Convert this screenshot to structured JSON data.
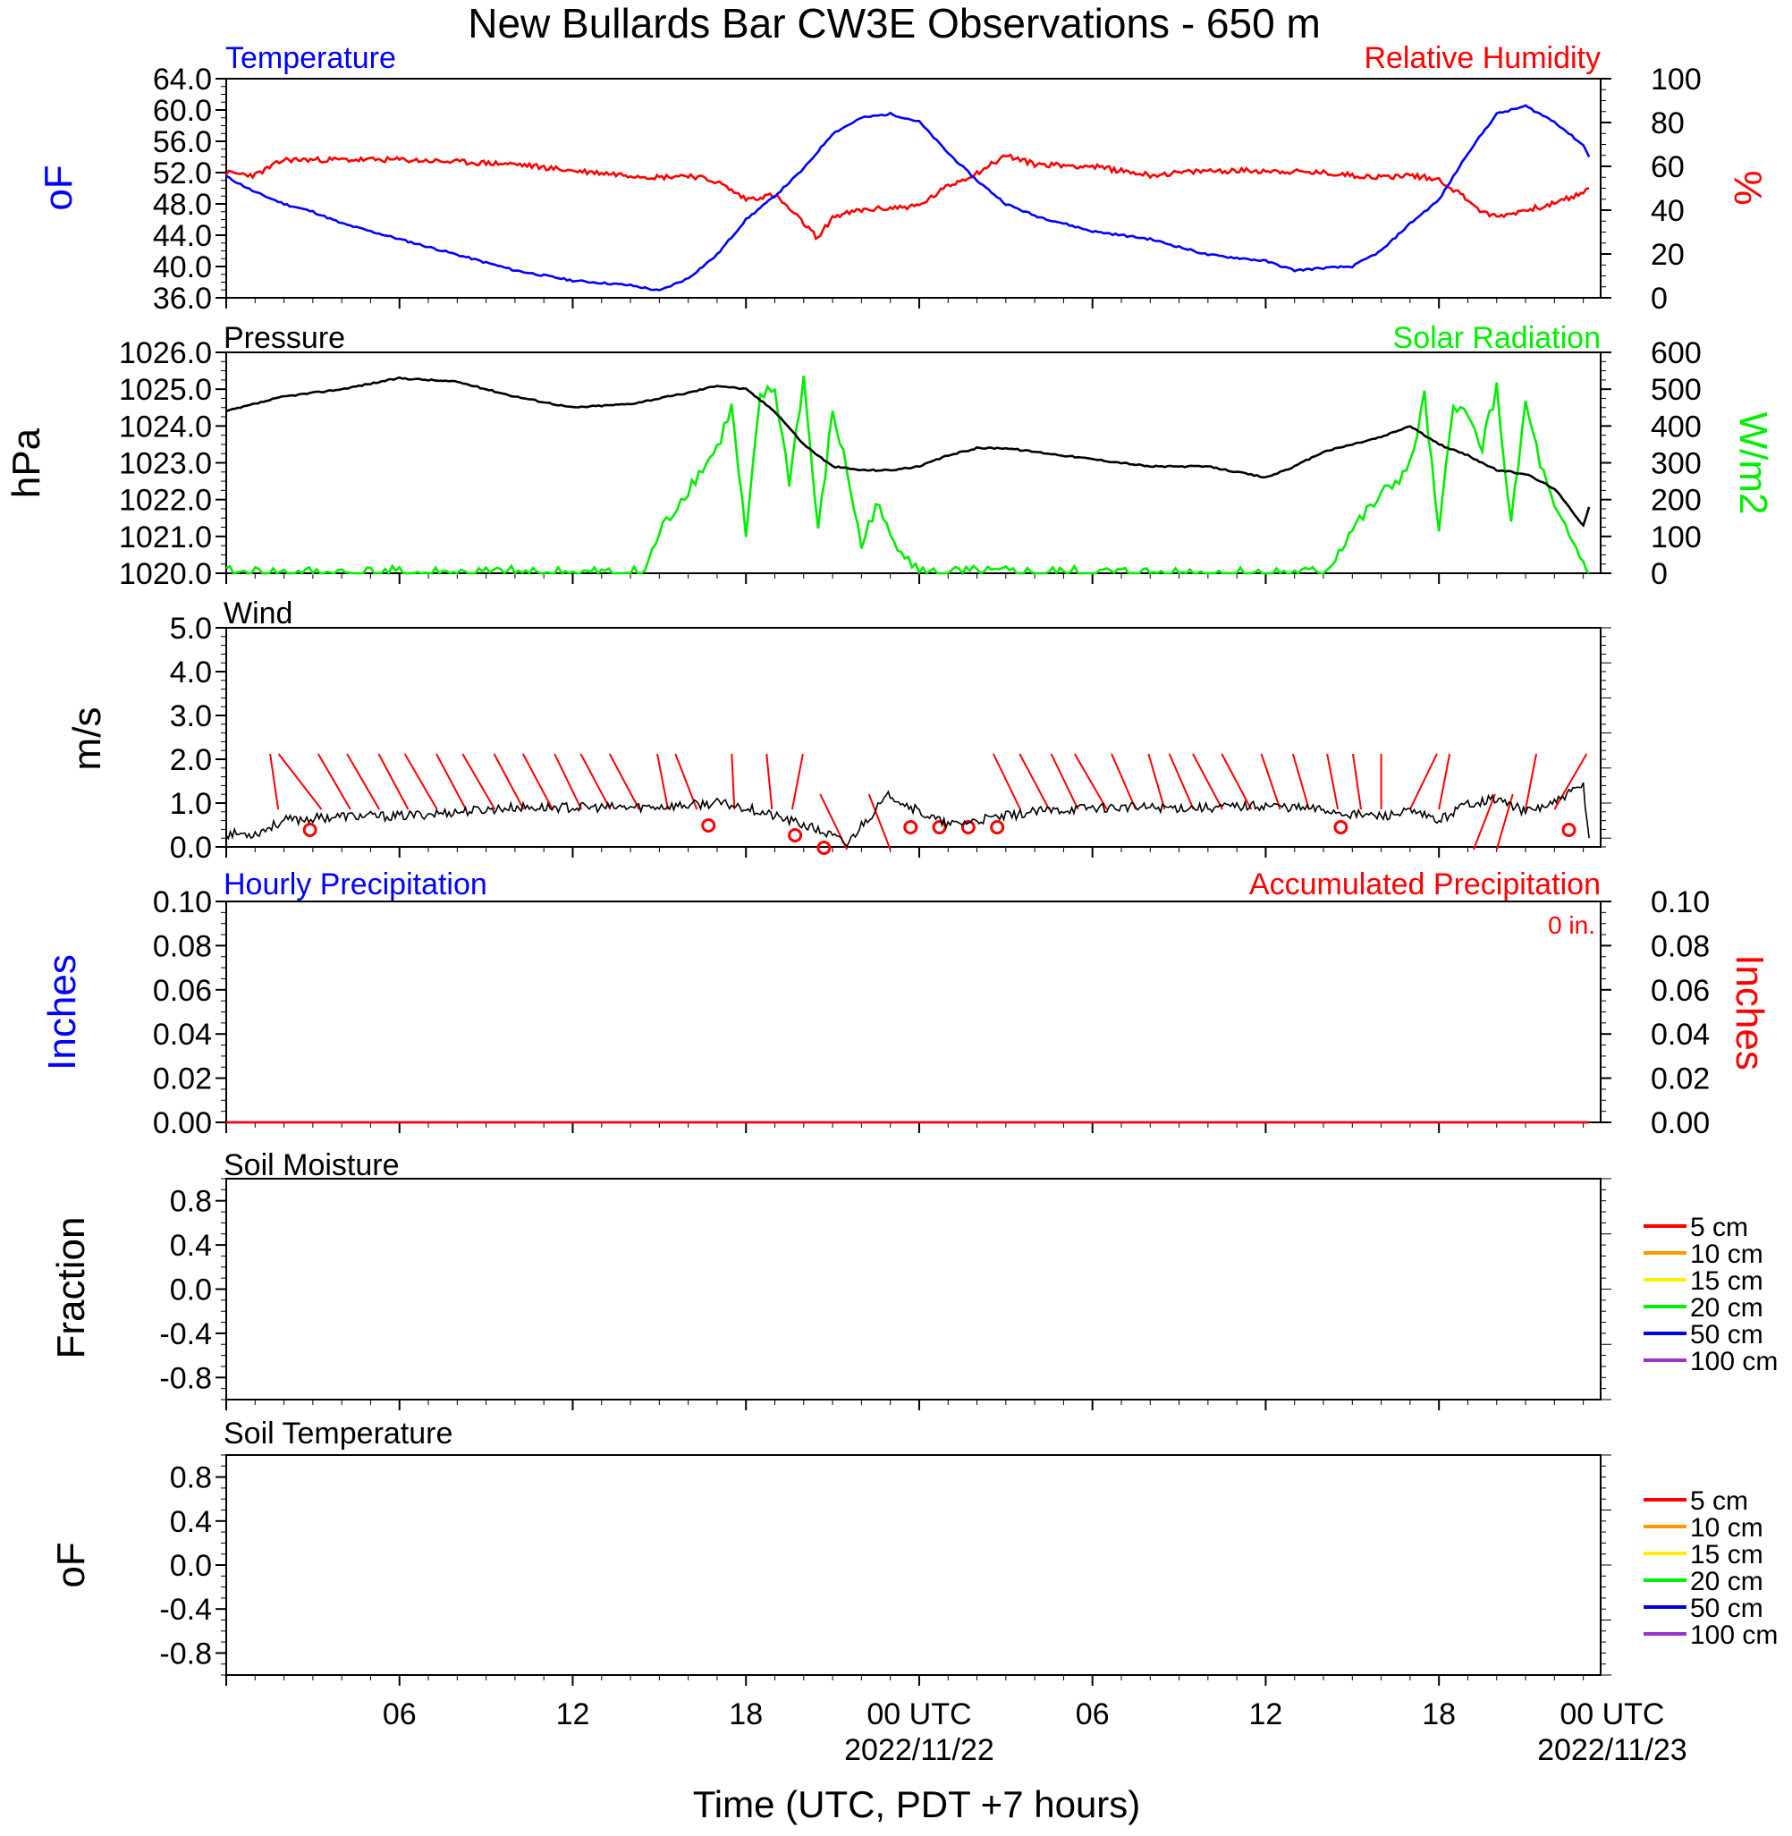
{
  "title": "New Bullards Bar CW3E Observations - 650 m",
  "x_axis": {
    "title": "Time (UTC, PDT +7 hours)",
    "tick_labels": [
      "06",
      "12",
      "18",
      "00 UTC",
      "06",
      "12",
      "18",
      "00 UTC"
    ],
    "date_labels": [
      "2022/11/22",
      "2022/11/23"
    ]
  },
  "panels": {
    "temp_rh": {
      "left_title": "Temperature",
      "right_title": "Relative Humidity",
      "left_unit": "oF",
      "right_unit": "%",
      "left_ticks": [
        "64.0",
        "60.0",
        "56.0",
        "52.0",
        "48.0",
        "44.0",
        "40.0",
        "36.0"
      ],
      "right_ticks": [
        "100",
        "80",
        "60",
        "40",
        "20",
        "0"
      ],
      "left_color": "#0000ff",
      "right_color": "#ff0000"
    },
    "pressure_solar": {
      "left_title": "Pressure",
      "right_title": "Solar Radiation",
      "left_unit": "hPa",
      "right_unit": "W/m2",
      "left_ticks": [
        "1026.0",
        "1025.0",
        "1024.0",
        "1023.0",
        "1022.0",
        "1021.0",
        "1020.0"
      ],
      "right_ticks": [
        "600",
        "500",
        "400",
        "300",
        "200",
        "100",
        "0"
      ],
      "left_color": "#000000",
      "right_color": "#00ee00"
    },
    "wind": {
      "left_title": "Wind",
      "left_unit": "m/s",
      "left_ticks": [
        "5.0",
        "4.0",
        "3.0",
        "2.0",
        "1.0",
        "0.0"
      ],
      "line_color": "#000000",
      "barb_color": "#ff0000"
    },
    "precip": {
      "left_title": "Hourly Precipitation",
      "right_title": "Accumulated Precipitation",
      "accum_label": "0 in.",
      "left_unit": "Inches",
      "right_unit": "Inches",
      "left_ticks": [
        "0.10",
        "0.08",
        "0.06",
        "0.04",
        "0.02",
        "0.00"
      ],
      "right_ticks": [
        "0.10",
        "0.08",
        "0.06",
        "0.04",
        "0.02",
        "0.00"
      ],
      "left_color": "#0000ff",
      "right_color": "#ff0000"
    },
    "soil_moisture": {
      "left_title": "Soil Moisture",
      "left_unit": "Fraction",
      "left_ticks": [
        "0.8",
        "0.4",
        "0.0",
        "-0.4",
        "-0.8"
      ],
      "legend": [
        {
          "label": "5 cm",
          "color": "#ff0000"
        },
        {
          "label": "10 cm",
          "color": "#ff9900"
        },
        {
          "label": "15 cm",
          "color": "#ffee00"
        },
        {
          "label": "20 cm",
          "color": "#00ee00"
        },
        {
          "label": "50 cm",
          "color": "#0000dd"
        },
        {
          "label": "100 cm",
          "color": "#9933cc"
        }
      ]
    },
    "soil_temp": {
      "left_title": "Soil Temperature",
      "left_unit": "oF",
      "left_ticks": [
        "0.8",
        "0.4",
        "0.0",
        "-0.4",
        "-0.8"
      ],
      "legend": [
        {
          "label": "5 cm",
          "color": "#ff0000"
        },
        {
          "label": "10 cm",
          "color": "#ff9900"
        },
        {
          "label": "15 cm",
          "color": "#ffee00"
        },
        {
          "label": "20 cm",
          "color": "#00ee00"
        },
        {
          "label": "50 cm",
          "color": "#0000dd"
        },
        {
          "label": "100 cm",
          "color": "#9933cc"
        }
      ]
    }
  },
  "chart_data": [
    {
      "type": "line",
      "title": "Temperature",
      "ylabel": "oF",
      "ylim": [
        36,
        64
      ],
      "x_hours_utc": [
        0,
        1,
        2,
        3,
        4,
        6,
        8,
        10,
        12,
        14,
        15,
        16,
        17,
        18,
        19,
        20,
        21,
        22,
        23,
        24,
        25,
        26,
        27,
        28,
        30,
        32,
        34,
        36,
        37,
        38,
        39,
        40,
        41,
        42,
        43,
        44,
        45,
        46,
        47,
        47.2
      ],
      "series": [
        {
          "name": "Temperature",
          "color": "#0000ff",
          "values": [
            51.5,
            49.5,
            48.0,
            47.0,
            45.5,
            43.5,
            41.5,
            39.5,
            38.2,
            37.6,
            36.9,
            38.5,
            41.5,
            46.0,
            49.0,
            52.5,
            57.0,
            59.0,
            59.5,
            58.5,
            54.5,
            51.0,
            48.0,
            46.5,
            44.5,
            43.5,
            41.5,
            40.7,
            39.5,
            39.8,
            40.0,
            42.0,
            45.5,
            48.5,
            54.5,
            59.5,
            60.5,
            58.5,
            55.5,
            54.0
          ]
        }
      ]
    },
    {
      "type": "line",
      "title": "Relative Humidity",
      "ylabel": "%",
      "ylim": [
        0,
        100
      ],
      "x_hours_utc": [
        0,
        1,
        2,
        3,
        4,
        6,
        8,
        10,
        12,
        14,
        15,
        16,
        17,
        18,
        19,
        20,
        20.5,
        21,
        22,
        23,
        24,
        25,
        26,
        27,
        28,
        30,
        32,
        34,
        36,
        38,
        40,
        41,
        42,
        43,
        43.5,
        44,
        45,
        46,
        47,
        47.2
      ],
      "series": [
        {
          "name": "Relative Humidity",
          "color": "#ff0000",
          "values": [
            57,
            56,
            63,
            63,
            63,
            63,
            62,
            61,
            58,
            56,
            55,
            56,
            53,
            45,
            47,
            34,
            27,
            37,
            40,
            41,
            42,
            51,
            57,
            65,
            61,
            60,
            56,
            58,
            58,
            57,
            55,
            56,
            54,
            45,
            39,
            37,
            40,
            43,
            48,
            50
          ]
        }
      ]
    },
    {
      "type": "line",
      "title": "Pressure",
      "ylabel": "hPa",
      "ylim": [
        1020,
        1026
      ],
      "x_hours_utc": [
        0,
        2,
        4,
        6,
        8,
        10,
        12,
        14,
        16,
        17,
        18,
        19,
        20,
        21,
        22,
        23,
        24,
        25,
        26,
        27,
        28,
        30,
        32,
        34,
        36,
        37,
        38,
        40,
        41,
        42,
        43,
        44,
        45,
        46,
        47,
        47.2
      ],
      "series": [
        {
          "name": "Pressure",
          "color": "#000000",
          "values": [
            1024.4,
            1024.8,
            1025.0,
            1025.3,
            1025.2,
            1024.8,
            1024.5,
            1024.6,
            1024.9,
            1025.1,
            1025.0,
            1024.4,
            1023.5,
            1022.9,
            1022.8,
            1022.8,
            1022.9,
            1023.2,
            1023.4,
            1023.4,
            1023.3,
            1023.1,
            1022.9,
            1022.9,
            1022.6,
            1022.9,
            1023.3,
            1023.7,
            1024.0,
            1023.5,
            1023.2,
            1022.8,
            1022.7,
            1022.3,
            1021.3,
            1021.8
          ]
        }
      ]
    },
    {
      "type": "line",
      "title": "Solar Radiation",
      "ylabel": "W/m2",
      "ylim": [
        0,
        600
      ],
      "x_hours_utc": [
        0,
        14,
        14.5,
        15,
        16,
        17,
        17.5,
        18,
        18.5,
        19,
        19.5,
        20,
        20.5,
        21,
        21.5,
        22,
        22.5,
        23,
        23.5,
        24,
        32,
        38,
        38.3,
        39,
        40,
        41,
        41.5,
        42,
        42.5,
        43,
        43.5,
        44,
        44.5,
        45,
        45.5,
        46,
        47,
        47.2
      ],
      "series": [
        {
          "name": "Solar Radiation",
          "color": "#00ee00",
          "values": [
            0,
            0,
            5,
            110,
            230,
            340,
            450,
            95,
            480,
            500,
            250,
            530,
            110,
            440,
            280,
            70,
            190,
            100,
            60,
            0,
            0,
            0,
            30,
            120,
            210,
            290,
            480,
            100,
            470,
            420,
            350,
            500,
            130,
            460,
            300,
            170,
            30,
            0
          ]
        }
      ]
    },
    {
      "type": "line",
      "title": "Wind",
      "ylabel": "m/s",
      "ylim": [
        0,
        5
      ],
      "x_hours_utc": [
        0,
        1,
        2,
        4,
        6,
        8,
        10,
        12,
        14,
        16,
        17,
        18,
        19,
        20,
        21,
        21.5,
        22,
        23,
        24,
        25,
        26,
        28,
        30,
        32,
        34,
        36,
        38,
        39,
        40,
        41,
        42,
        43,
        44,
        45,
        46,
        47,
        47.2
      ],
      "series": [
        {
          "name": "Wind speed",
          "color": "#000000",
          "values": [
            0.3,
            0.3,
            0.6,
            0.7,
            0.7,
            0.8,
            0.9,
            0.9,
            0.9,
            0.95,
            1.0,
            0.9,
            0.7,
            0.5,
            0.25,
            0.05,
            0.5,
            1.2,
            0.8,
            0.5,
            0.6,
            0.8,
            0.9,
            0.9,
            0.9,
            0.95,
            0.85,
            0.75,
            0.7,
            0.8,
            0.6,
            1.0,
            1.1,
            0.8,
            1.0,
            1.4,
            0.2
          ]
        }
      ]
    },
    {
      "type": "line",
      "title": "Hourly Precipitation",
      "ylabel": "Inches",
      "ylim": [
        0,
        0.1
      ],
      "x_hours_utc": [
        0,
        47.2
      ],
      "series": [
        {
          "name": "Hourly Precipitation",
          "color": "#0000ff",
          "values": [
            0,
            0
          ]
        },
        {
          "name": "Accumulated Precipitation",
          "color": "#ff0000",
          "values": [
            0,
            0
          ]
        }
      ]
    },
    {
      "type": "line",
      "title": "Soil Moisture",
      "ylabel": "Fraction",
      "ylim": [
        -1,
        1
      ],
      "series": []
    },
    {
      "type": "line",
      "title": "Soil Temperature",
      "ylabel": "oF",
      "ylim": [
        -1,
        1
      ],
      "series": []
    }
  ]
}
